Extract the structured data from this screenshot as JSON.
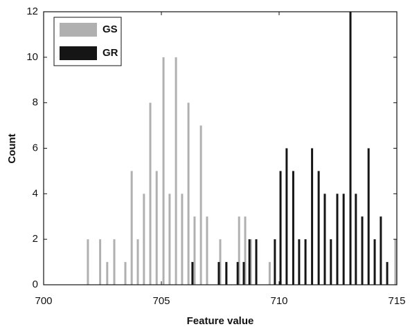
{
  "chart_data": {
    "type": "bar",
    "x_label": "Feature value",
    "y_label": "Count",
    "xlim": [
      700,
      715
    ],
    "xticks": [
      700,
      705,
      710,
      715
    ],
    "ylim": [
      0,
      12
    ],
    "yticks": [
      0,
      2,
      4,
      6,
      8,
      10,
      12
    ],
    "legend": "upper left",
    "series": [
      {
        "name": "GS",
        "color": "#b0b0b0",
        "x": [
          701.88,
          702.4,
          702.7,
          703.0,
          703.47,
          703.74,
          704.0,
          704.26,
          704.53,
          704.8,
          705.09,
          705.35,
          705.62,
          705.88,
          706.15,
          706.41,
          706.68,
          706.94,
          707.5,
          707.76,
          708.3,
          708.56,
          708.8,
          709.6,
          710.06,
          714.94
        ],
        "values": [
          2,
          2,
          1,
          2,
          1,
          5,
          2,
          4,
          8,
          5,
          10,
          4,
          10,
          4,
          8,
          3,
          7,
          3,
          2,
          1,
          3,
          3,
          2,
          1,
          1,
          2
        ]
      },
      {
        "name": "GR",
        "color": "#151515",
        "x": [
          706.32,
          707.44,
          707.76,
          708.24,
          708.5,
          708.74,
          709.03,
          709.82,
          710.06,
          710.32,
          710.6,
          710.85,
          711.12,
          711.4,
          711.68,
          711.94,
          712.2,
          712.47,
          712.74,
          713.03,
          713.26,
          713.53,
          713.8,
          714.06,
          714.32,
          714.59
        ],
        "values": [
          1,
          1,
          1,
          1,
          1,
          2,
          2,
          2,
          5,
          6,
          5,
          2,
          2,
          6,
          5,
          4,
          2,
          4,
          4,
          12,
          4,
          3,
          6,
          2,
          3,
          1
        ]
      }
    ]
  }
}
